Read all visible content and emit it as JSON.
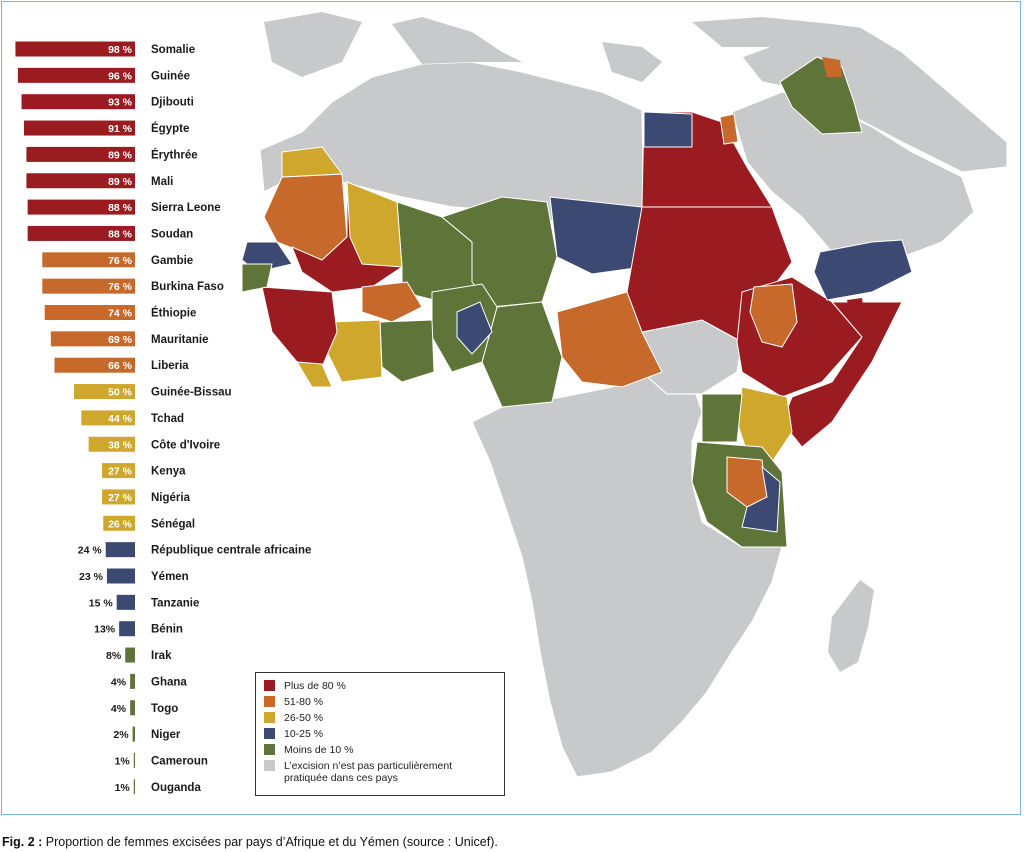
{
  "chart_data": {
    "type": "bar",
    "orientation": "horizontal",
    "unit": "%",
    "categories": [
      "Somalie",
      "Guinée",
      "Djibouti",
      "Égypte",
      "Érythrée",
      "Mali",
      "Sierra Leone",
      "Soudan",
      "Gambie",
      "Burkina Faso",
      "Éthiopie",
      "Mauritanie",
      "Liberia",
      "Guinée-Bissau",
      "Tchad",
      "Côte d'Ivoire",
      "Kenya",
      "Nigéria",
      "Sénégal",
      "République centrale africaine",
      "Yémen",
      "Tanzanie",
      "Bénin",
      "Irak",
      "Ghana",
      "Togo",
      "Niger",
      "Cameroun",
      "Ouganda"
    ],
    "values": [
      98,
      96,
      93,
      91,
      89,
      89,
      88,
      88,
      76,
      76,
      74,
      69,
      66,
      50,
      44,
      38,
      27,
      27,
      26,
      24,
      23,
      15,
      13,
      8,
      4,
      4,
      2,
      1,
      1
    ],
    "value_labels": [
      "98 %",
      "96 %",
      "93 %",
      "91 %",
      "89 %",
      "89 %",
      "88 %",
      "88 %",
      "76 %",
      "76 %",
      "74 %",
      "69 %",
      "66 %",
      "50 %",
      "44 %",
      "38 %",
      "27 %",
      "27 %",
      "26 %",
      "24 %",
      "23 %",
      "15 %",
      "13%",
      "8%",
      "4%",
      "4%",
      "2%",
      "1%",
      "1%"
    ],
    "bar_colors": [
      "#9b1c20",
      "#9b1c20",
      "#9b1c20",
      "#9b1c20",
      "#9b1c20",
      "#9b1c20",
      "#9b1c20",
      "#9b1c20",
      "#c8692c",
      "#c8692c",
      "#c8692c",
      "#c8692c",
      "#c8692c",
      "#cfa72c",
      "#cfa72c",
      "#cfa72c",
      "#cfa72c",
      "#cfa72c",
      "#cfa72c",
      "#3c4a73",
      "#3c4a73",
      "#3c4a73",
      "#3c4a73",
      "#5f7438",
      "#5f7438",
      "#5f7438",
      "#5f7438",
      "#5f7438",
      "#5f7438"
    ]
  },
  "legend": {
    "items": [
      {
        "label": "Plus de 80 %",
        "color": "#9b1c20"
      },
      {
        "label": "51-80 %",
        "color": "#c8692c"
      },
      {
        "label": "26-50 %",
        "color": "#cfa72c"
      },
      {
        "label": "10-25 %",
        "color": "#3c4a73"
      },
      {
        "label": "Moins de 10 %",
        "color": "#5f7438"
      },
      {
        "label": "L’excision n’est pas particulièrement pratiquée dans ces pays",
        "color": "#c8c9cb"
      }
    ]
  },
  "map_colors": {
    "red": "#9b1c20",
    "orange": "#c8692c",
    "yellow": "#cfa72c",
    "blue": "#3c4a73",
    "green": "#5f7438",
    "grey": "#c8c9cb"
  },
  "caption": {
    "prefix": "Fig. 2 :",
    "text": " Proportion de femmes excisées par pays d’Afrique et du Yémen (source : Unicef)."
  }
}
